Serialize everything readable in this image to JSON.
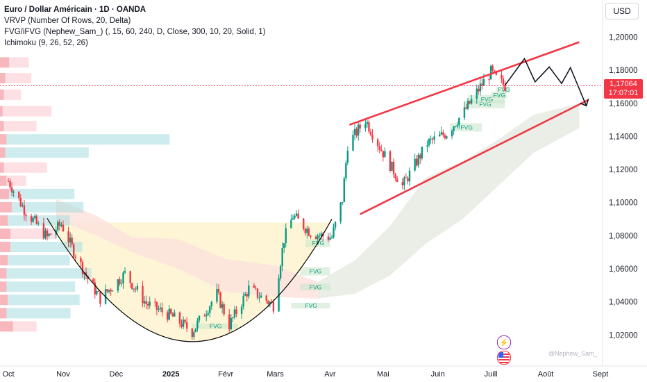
{
  "header": {
    "title": "Euro / Dollar Américain · 1D · OANDA",
    "indicators": [
      "VRVP (Number Of Rows, 20, Delta)",
      "FVG/iFVG (Nephew_Sam_) (, 15, 60, 240, D, Close, 300, 10, 20, Solid, 1)",
      "Ichimoku (9, 26, 52, 26)"
    ],
    "currency_button": "USD"
  },
  "price_tag": {
    "price": "1,17064",
    "countdown": "17:07:01"
  },
  "watermark": "@Nephew_Sam_",
  "fvg_label": "FVG",
  "icons": {
    "alert": "lightning-icon",
    "flag": "us-flag-icon"
  },
  "colors": {
    "up": "#089981",
    "down": "#f23645",
    "channel": "#f23645",
    "cloud": "#e8ece4",
    "cloud_bear": "#fbe3dd",
    "cup": "#000000",
    "price_line": "#f23645",
    "text_axis": "#131722"
  },
  "chart_data": {
    "type": "candlestick",
    "title": "Euro / Dollar Américain · 1D · OANDA",
    "y_axis": {
      "ticks": [
        "1,20000",
        "1,18000",
        "1,16000",
        "1,14000",
        "1,12000",
        "1,10000",
        "1,08000",
        "1,06000",
        "1,04000",
        "1,02000"
      ],
      "ylim": [
        1.0105,
        1.2195
      ]
    },
    "x_axis": {
      "ticks": [
        "Oct",
        "Nov",
        "Déc",
        "2025",
        "Févr",
        "Mars",
        "Avr",
        "Mai",
        "Juin",
        "Juill",
        "Août",
        "Sept"
      ],
      "range": [
        "2024-10-01",
        "2025-09-01"
      ]
    },
    "last_price": 1.17064,
    "close_path": [
      [
        "2024-10-01",
        1.113
      ],
      [
        "2024-10-10",
        1.096
      ],
      [
        "2024-10-23",
        1.079
      ],
      [
        "2024-10-31",
        1.087
      ],
      [
        "2024-11-06",
        1.073
      ],
      [
        "2024-11-15",
        1.054
      ],
      [
        "2024-11-22",
        1.042
      ],
      [
        "2024-12-06",
        1.057
      ],
      [
        "2024-12-18",
        1.039
      ],
      [
        "2025-01-02",
        1.031
      ],
      [
        "2025-01-13",
        1.022
      ],
      [
        "2025-01-27",
        1.045
      ],
      [
        "2025-02-03",
        1.026
      ],
      [
        "2025-02-14",
        1.048
      ],
      [
        "2025-02-28",
        1.038
      ],
      [
        "2025-03-06",
        1.078
      ],
      [
        "2025-03-11",
        1.092
      ],
      [
        "2025-03-21",
        1.082
      ],
      [
        "2025-03-27",
        1.08
      ],
      [
        "2025-04-02",
        1.079
      ],
      [
        "2025-04-08",
        1.102
      ],
      [
        "2025-04-11",
        1.135
      ],
      [
        "2025-04-21",
        1.15
      ],
      [
        "2025-04-30",
        1.132
      ],
      [
        "2025-05-12",
        1.11
      ],
      [
        "2025-05-26",
        1.136
      ],
      [
        "2025-06-06",
        1.142
      ],
      [
        "2025-06-16",
        1.155
      ],
      [
        "2025-06-25",
        1.17
      ],
      [
        "2025-07-01",
        1.179
      ],
      [
        "2025-07-04",
        1.175
      ],
      [
        "2025-07-09",
        1.1706
      ]
    ],
    "cup_curve": {
      "start": [
        "2024-10-23",
        1.0905
      ],
      "bottom": [
        "2025-01-13",
        1.016
      ],
      "end": [
        "2025-04-02",
        1.09
      ]
    },
    "channel": {
      "upper": [
        [
          "2025-04-12",
          1.147
        ],
        [
          "2025-08-20",
          1.197
        ]
      ],
      "lower": [
        [
          "2025-04-18",
          1.093
        ],
        [
          "2025-08-25",
          1.162
        ]
      ]
    },
    "projection": [
      [
        "2025-07-09",
        1.171
      ],
      [
        "2025-07-20",
        1.187
      ],
      [
        "2025-07-26",
        1.173
      ],
      [
        "2025-08-03",
        1.182
      ],
      [
        "2025-08-10",
        1.172
      ],
      [
        "2025-08-15",
        1.1815
      ],
      [
        "2025-08-24",
        1.1585
      ]
    ],
    "fvg_zones": [
      {
        "from": "2025-01-13",
        "to": "2025-02-08",
        "low": 1.025,
        "high": 1.027
      },
      {
        "from": "2025-03-10",
        "to": "2025-04-01",
        "low": 1.036,
        "high": 1.0395
      },
      {
        "from": "2025-03-15",
        "to": "2025-04-01",
        "low": 1.047,
        "high": 1.051
      },
      {
        "from": "2025-03-15",
        "to": "2025-04-01",
        "low": 1.056,
        "high": 1.061
      },
      {
        "from": "2025-03-18",
        "to": "2025-04-01",
        "low": 1.073,
        "high": 1.078
      },
      {
        "from": "2025-06-08",
        "to": "2025-06-26",
        "low": 1.143,
        "high": 1.148
      },
      {
        "from": "2025-06-16",
        "to": "2025-07-09",
        "low": 1.157,
        "high": 1.162
      },
      {
        "from": "2025-06-18",
        "to": "2025-07-09",
        "low": 1.16,
        "high": 1.165
      },
      {
        "from": "2025-07-01",
        "to": "2025-07-10",
        "low": 1.163,
        "high": 1.167
      },
      {
        "from": "2025-07-04",
        "to": "2025-07-12",
        "low": 1.1665,
        "high": 1.17
      }
    ],
    "ichimoku_cloud": {
      "top": [
        [
          "2024-10-28",
          1.102
        ],
        [
          "2024-11-20",
          1.092
        ],
        [
          "2024-12-10",
          1.079
        ],
        [
          "2025-01-05",
          1.078
        ],
        [
          "2025-02-01",
          1.066
        ],
        [
          "2025-03-01",
          1.062
        ],
        [
          "2025-03-25",
          1.052
        ],
        [
          "2025-04-15",
          1.065
        ],
        [
          "2025-05-05",
          1.086
        ],
        [
          "2025-05-25",
          1.115
        ],
        [
          "2025-06-15",
          1.125
        ],
        [
          "2025-07-05",
          1.138
        ],
        [
          "2025-07-25",
          1.153
        ],
        [
          "2025-08-20",
          1.16
        ]
      ],
      "bottom": [
        [
          "2024-10-28",
          1.09
        ],
        [
          "2024-11-20",
          1.08
        ],
        [
          "2024-12-10",
          1.07
        ],
        [
          "2025-01-05",
          1.06
        ],
        [
          "2025-02-01",
          1.046
        ],
        [
          "2025-03-01",
          1.043
        ],
        [
          "2025-03-25",
          1.042
        ],
        [
          "2025-04-15",
          1.045
        ],
        [
          "2025-05-05",
          1.056
        ],
        [
          "2025-05-25",
          1.075
        ],
        [
          "2025-06-15",
          1.09
        ],
        [
          "2025-07-05",
          1.11
        ],
        [
          "2025-07-25",
          1.13
        ],
        [
          "2025-08-20",
          1.145
        ]
      ],
      "bearish_until": "2025-03-25"
    },
    "volume_profile": [
      {
        "price": 1.1845,
        "buy": 14,
        "sell": 30
      },
      {
        "price": 1.175,
        "buy": 8,
        "sell": 40
      },
      {
        "price": 1.165,
        "buy": 6,
        "sell": 26
      },
      {
        "price": 1.155,
        "buy": 4,
        "sell": 75
      },
      {
        "price": 1.146,
        "buy": 6,
        "sell": 50
      },
      {
        "price": 1.138,
        "buy": 10,
        "sell": 250
      },
      {
        "price": 1.13,
        "buy": 8,
        "sell": 128
      },
      {
        "price": 1.121,
        "buy": 6,
        "sell": 66
      },
      {
        "price": 1.113,
        "buy": 10,
        "sell": 30
      },
      {
        "price": 1.105,
        "buy": 14,
        "sell": 100
      },
      {
        "price": 1.097,
        "buy": 18,
        "sell": 110
      },
      {
        "price": 1.089,
        "buy": 12,
        "sell": 95
      },
      {
        "price": 1.081,
        "buy": 16,
        "sell": 70
      },
      {
        "price": 1.073,
        "buy": 16,
        "sell": 110
      },
      {
        "price": 1.065,
        "buy": 12,
        "sell": 95
      },
      {
        "price": 1.057,
        "buy": 10,
        "sell": 130
      },
      {
        "price": 1.049,
        "buy": 10,
        "sell": 105
      },
      {
        "price": 1.041,
        "buy": 12,
        "sell": 110
      },
      {
        "price": 1.033,
        "buy": 10,
        "sell": 98
      },
      {
        "price": 1.025,
        "buy": 20,
        "sell": 36
      }
    ]
  }
}
